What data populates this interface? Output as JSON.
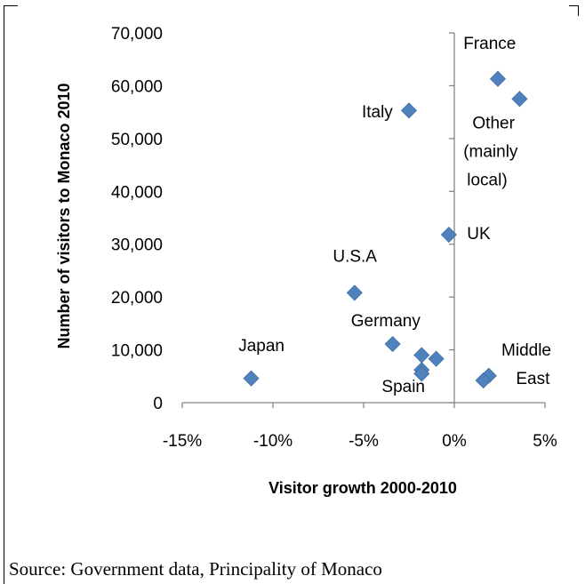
{
  "chart_data": {
    "type": "scatter",
    "xlabel": "Visitor growth 2000-2010",
    "ylabel": "Number of visitors to Monaco 2010",
    "xlim": [
      -0.15,
      0.05
    ],
    "ylim": [
      0,
      70000
    ],
    "x_ticks": [
      -0.15,
      -0.1,
      -0.05,
      0,
      0.05
    ],
    "x_tick_labels": [
      "-15%",
      "-10%",
      "-5%",
      "0%",
      "5%"
    ],
    "y_ticks": [
      0,
      10000,
      20000,
      30000,
      40000,
      50000,
      60000,
      70000
    ],
    "y_tick_labels": [
      "0",
      "10,000",
      "20,000",
      "30,000",
      "40,000",
      "50,000",
      "60,000",
      "70,000"
    ],
    "grid": false,
    "marker_color": "#4f81bd",
    "points": [
      {
        "x": 0.024,
        "y": 61300
      },
      {
        "x": 0.036,
        "y": 57500
      },
      {
        "x": -0.025,
        "y": 55300
      },
      {
        "x": -0.003,
        "y": 31800
      },
      {
        "x": -0.055,
        "y": 20800
      },
      {
        "x": -0.034,
        "y": 11100
      },
      {
        "x": -0.018,
        "y": 9000
      },
      {
        "x": -0.01,
        "y": 8300
      },
      {
        "x": -0.018,
        "y": 6200
      },
      {
        "x": -0.018,
        "y": 5500
      },
      {
        "x": -0.112,
        "y": 4600
      },
      {
        "x": 0.019,
        "y": 5100
      },
      {
        "x": 0.016,
        "y": 4200
      }
    ],
    "annotations": [
      {
        "text": "France",
        "x": 0.005,
        "y": 67000
      },
      {
        "text": "Italy",
        "x": -0.051,
        "y": 54000
      },
      {
        "text": "Other",
        "x": 0.01,
        "y": 51900
      },
      {
        "text": "(mainly",
        "x": 0.005,
        "y": 46500
      },
      {
        "text": "local)",
        "x": 0.007,
        "y": 41100
      },
      {
        "text": "UK",
        "x": 0.007,
        "y": 31000
      },
      {
        "text": "U.S.A",
        "x": -0.067,
        "y": 26700
      },
      {
        "text": "Germany",
        "x": -0.057,
        "y": 14500
      },
      {
        "text": "Japan",
        "x": -0.119,
        "y": 9800
      },
      {
        "text": "Middle",
        "x": 0.026,
        "y": 8900
      },
      {
        "text": "East",
        "x": 0.034,
        "y": 3500
      },
      {
        "text": "Spain",
        "x": -0.04,
        "y": 2000
      }
    ]
  },
  "footer": {
    "source": "Source: Government data, Principality of Monaco"
  }
}
